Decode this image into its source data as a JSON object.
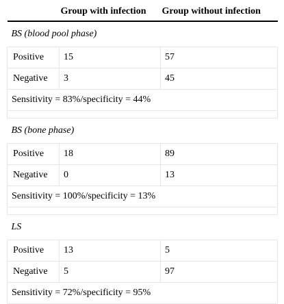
{
  "header": {
    "col1": "",
    "col2": "Group with infection",
    "col3": "Group without infection"
  },
  "sections": [
    {
      "title": "BS (blood pool phase)",
      "rows": [
        {
          "label": "Positive",
          "with": "15",
          "without": "57"
        },
        {
          "label": "Negative",
          "with": "3",
          "without": "45"
        }
      ],
      "summary": "Sensitivity = 83%/specificity = 44%"
    },
    {
      "title": "BS (bone phase)",
      "rows": [
        {
          "label": "Positive",
          "with": "18",
          "without": "89"
        },
        {
          "label": "Negative",
          "with": "0",
          "without": "13"
        }
      ],
      "summary": "Sensitivity = 100%/specificity = 13%"
    },
    {
      "title": "LS",
      "rows": [
        {
          "label": "Positive",
          "with": "13",
          "without": "5"
        },
        {
          "label": "Negative",
          "with": "5",
          "without": "97"
        }
      ],
      "summary": "Sensitivity = 72%/specificity = 95%"
    }
  ]
}
